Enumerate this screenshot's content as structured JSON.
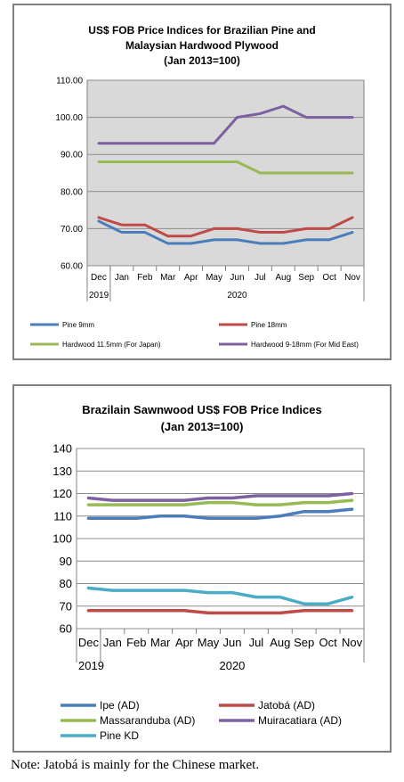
{
  "note": "Note: Jatobá is mainly for the Chinese market.",
  "chart_data": [
    {
      "type": "line",
      "title_lines": [
        "US$ FOB Price Indices for Brazilian Pine and",
        "Malaysian Hardwood Plywood",
        "(Jan 2013=100)"
      ],
      "categories": [
        "Dec",
        "Jan",
        "Feb",
        "Mar",
        "Apr",
        "May",
        "Jun",
        "Jul",
        "Aug",
        "Sep",
        "Oct",
        "Nov"
      ],
      "year_labels": {
        "first": "2019",
        "second": "2020"
      },
      "yticks": [
        "60.00",
        "70.00",
        "80.00",
        "90.00",
        "100.00",
        "110.00"
      ],
      "ylim": [
        60,
        110
      ],
      "grid": true,
      "legend_position": "bottom",
      "series": [
        {
          "name": "Pine 9mm",
          "color": "#4a7ebb",
          "values": [
            72,
            69,
            69,
            66,
            66,
            67,
            67,
            66,
            66,
            67,
            67,
            69
          ]
        },
        {
          "name": "Pine 18mm",
          "color": "#be4b48",
          "values": [
            73,
            71,
            71,
            68,
            68,
            70,
            70,
            69,
            69,
            70,
            70,
            73
          ]
        },
        {
          "name": "Hardwood 11.5mm (For Japan)",
          "color": "#98b954",
          "values": [
            88,
            88,
            88,
            88,
            88,
            88,
            88,
            85,
            85,
            85,
            85,
            85
          ]
        },
        {
          "name": "Hardwood 9-18mm (For Mid East)",
          "color": "#7d60a0",
          "values": [
            93,
            93,
            93,
            93,
            93,
            93,
            100,
            101,
            103,
            100,
            100,
            100
          ]
        }
      ]
    },
    {
      "type": "line",
      "title_lines": [
        "Brazilain Sawnwood US$ FOB Price Indices",
        "(Jan 2013=100)"
      ],
      "categories": [
        "Dec",
        "Jan",
        "Feb",
        "Mar",
        "Apr",
        "May",
        "Jun",
        "Jul",
        "Aug",
        "Sep",
        "Oct",
        "Nov"
      ],
      "year_labels": {
        "first": "2019",
        "second": "2020"
      },
      "yticks": [
        "60",
        "70",
        "80",
        "90",
        "100",
        "110",
        "120",
        "130",
        "140"
      ],
      "ylim": [
        60,
        140
      ],
      "grid": true,
      "legend_position": "bottom",
      "series": [
        {
          "name": "Ipe (AD)",
          "color": "#4a7ebb",
          "values": [
            109,
            109,
            109,
            110,
            110,
            109,
            109,
            109,
            110,
            112,
            112,
            113
          ]
        },
        {
          "name": "Jatobá (AD)",
          "color": "#be4b48",
          "values": [
            68,
            68,
            68,
            68,
            68,
            67,
            67,
            67,
            67,
            68,
            68,
            68
          ]
        },
        {
          "name": "Massaranduba (AD)",
          "color": "#98b954",
          "values": [
            115,
            115,
            115,
            115,
            115,
            116,
            116,
            115,
            115,
            116,
            116,
            117
          ]
        },
        {
          "name": "Muiracatiara (AD)",
          "color": "#7d60a0",
          "values": [
            118,
            117,
            117,
            117,
            117,
            118,
            118,
            119,
            119,
            119,
            119,
            120
          ]
        },
        {
          "name": "Pine KD",
          "color": "#4bacc6",
          "values": [
            78,
            77,
            77,
            77,
            77,
            76,
            76,
            74,
            74,
            71,
            71,
            74
          ]
        }
      ]
    }
  ]
}
